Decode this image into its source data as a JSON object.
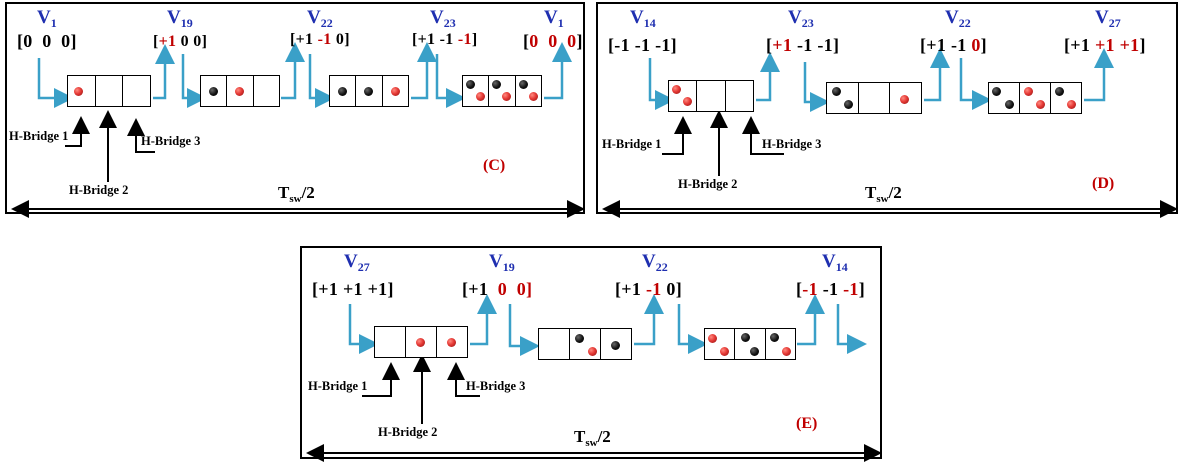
{
  "panels": {
    "c": {
      "caption": "(C)",
      "span_label": "T",
      "span_sub": "sw",
      "span_suffix": "/2",
      "hbridges": [
        "H-Bridge 1",
        "H-Bridge 2",
        "H-Bridge 3"
      ],
      "states": [
        {
          "v": "V",
          "sub": "1",
          "vec": [
            {
              "t": "[0",
              "red": false
            },
            {
              "t": "0",
              "red": false
            },
            {
              "t": "0]",
              "red": false
            }
          ]
        },
        {
          "v": "V",
          "sub": "19",
          "vec": [
            {
              "t": "[",
              "red": false
            },
            {
              "t": "+1",
              "red": true
            },
            {
              "t": "0 0]",
              "red": false
            }
          ]
        },
        {
          "v": "V",
          "sub": "22",
          "vec": [
            {
              "t": "[+1",
              "red": false
            },
            {
              "t": "-1",
              "red": true
            },
            {
              "t": "0]",
              "red": false
            }
          ]
        },
        {
          "v": "V",
          "sub": "23",
          "vec": [
            {
              "t": "[+1 -1",
              "red": false
            },
            {
              "t": "-1",
              "red": true
            },
            {
              "t": "]",
              "red": false
            }
          ]
        },
        {
          "v": "V",
          "sub": "1",
          "vec": [
            {
              "t": "[",
              "red": false
            },
            {
              "t": "0",
              "red": true
            },
            {
              "t": "0",
              "red": true
            },
            {
              "t": "0",
              "red": true
            },
            {
              "t": "]",
              "red": false
            }
          ]
        }
      ],
      "boxes": [
        [
          [
            "r"
          ],
          [],
          []
        ],
        [
          [
            "b"
          ],
          [
            "r"
          ],
          []
        ],
        [
          [
            "b"
          ],
          [
            "b"
          ],
          [
            "r"
          ]
        ],
        [
          [
            "b",
            "r"
          ],
          [
            "b",
            "r"
          ],
          [
            "b",
            "r"
          ]
        ]
      ]
    },
    "d": {
      "caption": "(D)",
      "span_label": "T",
      "span_sub": "sw",
      "span_suffix": "/2",
      "hbridges": [
        "H-Bridge 1",
        "H-Bridge 2",
        "H-Bridge 3"
      ],
      "states": [
        {
          "v": "V",
          "sub": "14",
          "vec": [
            {
              "t": "[-1 -1 -1]",
              "red": false
            }
          ]
        },
        {
          "v": "V",
          "sub": "23",
          "vec": [
            {
              "t": "[",
              "red": false
            },
            {
              "t": "+1",
              "red": true
            },
            {
              "t": "-1 -1]",
              "red": false
            }
          ]
        },
        {
          "v": "V",
          "sub": "22",
          "vec": [
            {
              "t": "[+1 -1",
              "red": false
            },
            {
              "t": "0",
              "red": true
            },
            {
              "t": "]",
              "red": false
            }
          ]
        },
        {
          "v": "V",
          "sub": "27",
          "vec": [
            {
              "t": "[+1",
              "red": false
            },
            {
              "t": "+1 +1",
              "red": true
            },
            {
              "t": "]",
              "red": false
            }
          ]
        }
      ],
      "boxes": [
        [
          [
            "r",
            "r"
          ],
          [],
          []
        ],
        [
          [
            "b",
            "b"
          ],
          [],
          [
            "r"
          ]
        ],
        [
          [
            "b",
            "b"
          ],
          [
            "r",
            "r"
          ],
          [
            "b",
            "r"
          ]
        ]
      ]
    },
    "e": {
      "caption": "(E)",
      "span_label": "T",
      "span_sub": "sw",
      "span_suffix": "/2",
      "hbridges": [
        "H-Bridge 1",
        "H-Bridge 2",
        "H-Bridge 3"
      ],
      "states": [
        {
          "v": "V",
          "sub": "27",
          "vec": [
            {
              "t": "[+1 +1 +1]",
              "red": false
            }
          ]
        },
        {
          "v": "V",
          "sub": "19",
          "vec": [
            {
              "t": "[+1",
              "red": false
            },
            {
              "t": "0",
              "red": true
            },
            {
              "t": "0]",
              "red": true
            }
          ]
        },
        {
          "v": "V",
          "sub": "22",
          "vec": [
            {
              "t": "[+1",
              "red": false
            },
            {
              "t": "-1",
              "red": true
            },
            {
              "t": "0]",
              "red": false
            }
          ]
        },
        {
          "v": "V",
          "sub": "14",
          "vec": [
            {
              "t": "[",
              "red": false
            },
            {
              "t": "-1",
              "red": true
            },
            {
              "t": "-1",
              "red": false
            },
            {
              "t": "-1",
              "red": true
            },
            {
              "t": "]",
              "red": false
            }
          ]
        }
      ],
      "boxes": [
        [
          [],
          [
            "r"
          ],
          [
            "r"
          ]
        ],
        [
          [],
          [
            "b",
            "r"
          ],
          [
            "b"
          ]
        ],
        [
          [
            "r",
            "r"
          ],
          [
            "b",
            "b"
          ],
          [
            "b",
            "r"
          ]
        ]
      ]
    }
  },
  "colors": {
    "vector_label": "#1f2fb0",
    "highlight": "#c00000",
    "flow_arrow": "#3aa0c8",
    "dot_red": "#e53935",
    "dot_black": "#111111"
  }
}
